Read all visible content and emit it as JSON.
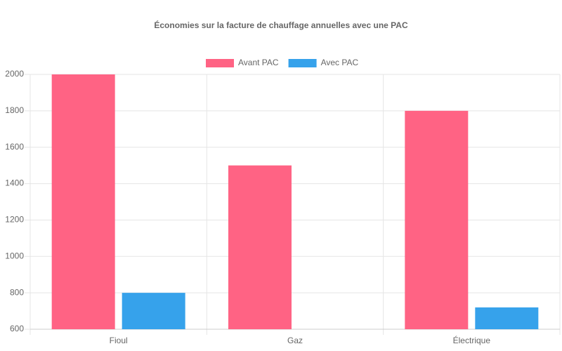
{
  "chart_data": {
    "type": "bar",
    "title": "Économies sur la facture de chauffage annuelles avec une PAC",
    "categories": [
      "Fioul",
      "Gaz",
      "Électrique"
    ],
    "series": [
      {
        "name": "Avant PAC",
        "color": "#ff6384",
        "values": [
          2000,
          1500,
          1800
        ]
      },
      {
        "name": "Avec PAC",
        "color": "#36a2eb",
        "values": [
          800,
          600,
          720
        ]
      }
    ],
    "ylim": [
      600,
      2000
    ],
    "yticks": [
      600,
      800,
      1000,
      1200,
      1400,
      1600,
      1800,
      2000
    ],
    "grid": true,
    "legend": "top"
  }
}
